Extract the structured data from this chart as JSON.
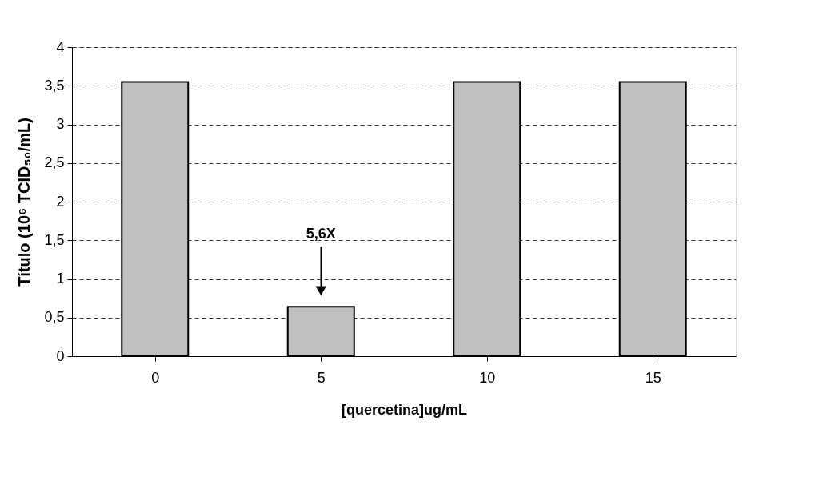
{
  "chart_data": {
    "type": "bar",
    "xlabel": "[quercetina]ug/mL",
    "ylabel": "Título (10⁶ TCID₅₀/mL)",
    "categories": [
      "0",
      "5",
      "10",
      "15"
    ],
    "values": [
      3.55,
      0.64,
      3.55,
      3.55
    ],
    "color": "#c0c0c0",
    "ylim": [
      0,
      4
    ],
    "yticks": [
      0,
      {
        "value": 0.5,
        "label": "0,5"
      },
      1,
      {
        "value": 1.5,
        "label": "1,5"
      },
      2,
      {
        "value": 2.5,
        "label": "2,5"
      },
      3,
      {
        "value": 3.5,
        "label": "3,5"
      },
      4
    ],
    "grid": "y",
    "annotations": [
      "5,6X"
    ]
  }
}
